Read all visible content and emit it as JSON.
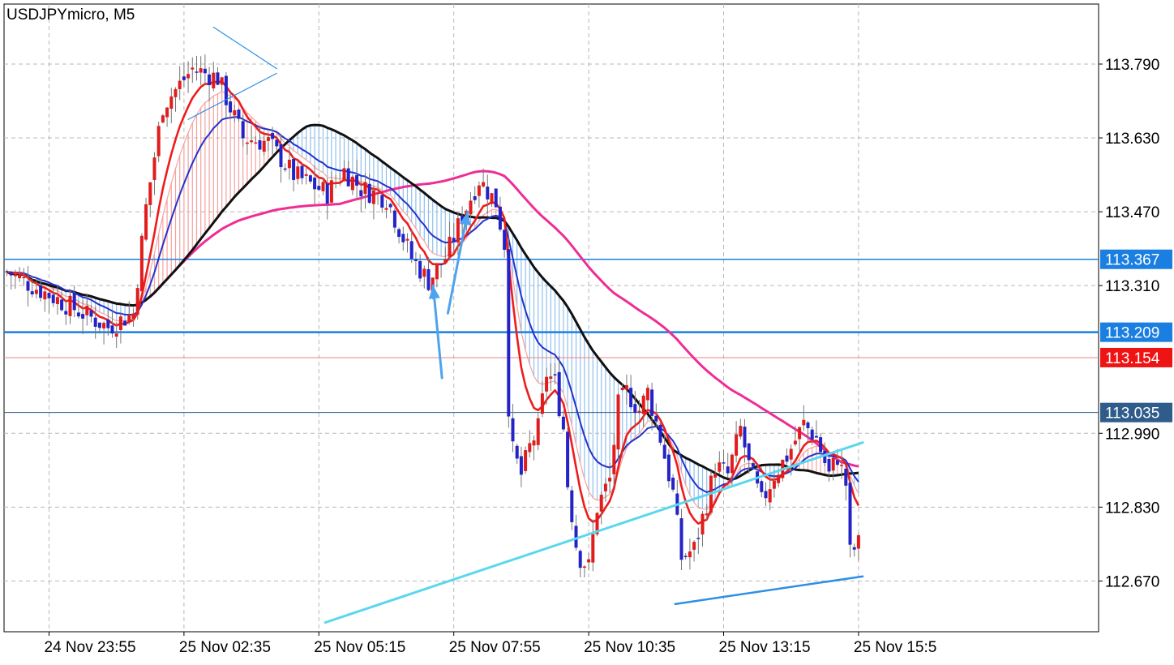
{
  "window": {
    "title": "USDJPYmicro, M5"
  },
  "chart_data": {
    "type": "candlestick",
    "symbol": "USDJPYmicro",
    "timeframe": "M5",
    "ylim": [
      112.56,
      113.92
    ],
    "y_ticks": [
      {
        "value": 112.67,
        "label": "112.670"
      },
      {
        "value": 112.83,
        "label": "112.830"
      },
      {
        "value": 112.99,
        "label": "112.990"
      },
      {
        "value": 113.31,
        "label": "113.310"
      },
      {
        "value": 113.47,
        "label": "113.470"
      },
      {
        "value": 113.63,
        "label": "113.630"
      },
      {
        "value": 113.79,
        "label": "113.790"
      }
    ],
    "x_ticks": [
      {
        "bar": 10,
        "label": "24 Nov 23:55"
      },
      {
        "bar": 42,
        "label": "25 Nov 02:35"
      },
      {
        "bar": 74,
        "label": "25 Nov 05:15"
      },
      {
        "bar": 106,
        "label": "25 Nov 07:55"
      },
      {
        "bar": 138,
        "label": "25 Nov 10:35"
      },
      {
        "bar": 170,
        "label": "25 Nov 13:15"
      },
      {
        "bar": 202,
        "label": "25 Nov 15:5"
      }
    ],
    "price_levels": [
      {
        "price": 113.367,
        "label": "113.367",
        "color": "#1a7fe0",
        "badge_bg": "#1a7fe0",
        "width": 1.5
      },
      {
        "price": 113.209,
        "label": "113.209",
        "color": "#1a7fe0",
        "badge_bg": "#1a7fe0",
        "width": 2.5
      },
      {
        "price": 113.154,
        "label": "113.154",
        "color": "#f08080",
        "badge_bg": "#ef1414",
        "width": 1
      },
      {
        "price": 113.035,
        "label": "113.035",
        "color": "#2f5c8a",
        "badge_bg": "#2f5c8a",
        "width": 1
      }
    ],
    "colors": {
      "bull": "#e01c1c",
      "bear": "#2323c8",
      "ema_fast": "#ee1c1c",
      "ema_mid": "#2233cc",
      "sma_slow": "#111111",
      "sma_long": "#ee2d95",
      "cloud_bull": "#f4a3a0",
      "cloud_bear": "#8fc0ee",
      "trend_light": "#5ad7ee",
      "trend_blue": "#2d8fe6",
      "arrows": "#4da3ee"
    },
    "keypoints": [
      [
        0,
        113.34
      ],
      [
        12,
        113.28
      ],
      [
        24,
        113.22
      ],
      [
        30,
        113.25
      ],
      [
        33,
        113.48
      ],
      [
        37,
        113.7
      ],
      [
        44,
        113.78
      ],
      [
        50,
        113.76
      ],
      [
        56,
        113.63
      ],
      [
        62,
        113.62
      ],
      [
        68,
        113.55
      ],
      [
        76,
        113.51
      ],
      [
        80,
        113.56
      ],
      [
        84,
        113.52
      ],
      [
        90,
        113.5
      ],
      [
        96,
        113.37
      ],
      [
        100,
        113.32
      ],
      [
        104,
        113.37
      ],
      [
        108,
        113.46
      ],
      [
        112,
        113.54
      ],
      [
        116,
        113.49
      ],
      [
        118,
        113.4
      ],
      [
        119,
        113.05
      ],
      [
        120,
        112.95
      ],
      [
        122,
        112.9
      ],
      [
        124,
        112.96
      ],
      [
        126,
        113.0
      ],
      [
        128,
        113.12
      ],
      [
        130,
        113.1
      ],
      [
        132,
        113.0
      ],
      [
        133,
        112.88
      ],
      [
        135,
        112.75
      ],
      [
        136,
        112.72
      ],
      [
        138,
        112.7
      ],
      [
        140,
        112.83
      ],
      [
        143,
        112.89
      ],
      [
        145,
        113.05
      ],
      [
        147,
        113.08
      ],
      [
        150,
        113.04
      ],
      [
        152,
        113.08
      ],
      [
        155,
        112.98
      ],
      [
        158,
        112.86
      ],
      [
        160,
        112.72
      ],
      [
        163,
        112.74
      ],
      [
        166,
        112.84
      ],
      [
        168,
        112.92
      ],
      [
        171,
        112.9
      ],
      [
        174,
        113.0
      ],
      [
        176,
        112.92
      ],
      [
        179,
        112.84
      ],
      [
        182,
        112.9
      ],
      [
        185,
        112.94
      ],
      [
        189,
        113.01
      ],
      [
        192,
        112.98
      ],
      [
        195,
        112.9
      ],
      [
        197,
        112.94
      ],
      [
        199,
        112.88
      ],
      [
        200,
        112.73
      ],
      [
        202,
        112.75
      ]
    ],
    "trendlines": [
      {
        "from": [
          75.5,
          112.58
        ],
        "to": [
          203,
          112.97
        ],
        "color": "#5ad7ee",
        "width": 3
      },
      {
        "from": [
          158.5,
          112.62
        ],
        "to": [
          203,
          112.68
        ],
        "color": "#2d8fe6",
        "width": 2.5
      },
      {
        "from": [
          43,
          113.67
        ],
        "to": [
          64,
          113.77
        ],
        "color": "#2d8fe6",
        "width": 1.2
      },
      {
        "from": [
          49,
          113.87
        ],
        "to": [
          64,
          113.78
        ],
        "color": "#2d8fe6",
        "width": 1.2
      }
    ],
    "arrows": [
      {
        "from": [
          103.2,
          113.11
        ],
        "to": [
          101.1,
          113.31
        ]
      },
      {
        "from": [
          104.6,
          113.25
        ],
        "to": [
          109.3,
          113.47
        ]
      }
    ]
  }
}
